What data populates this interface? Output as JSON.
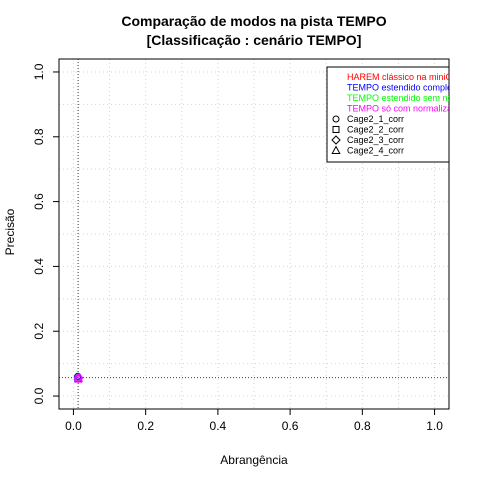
{
  "chart_data": {
    "type": "scatter",
    "title": [
      "Comparação de modos na pista TEMPO",
      "[Classificação : cenário TEMPO]"
    ],
    "xlabel": "Abrangência",
    "ylabel": "Precisão",
    "xlim": [
      0,
      1
    ],
    "ylim": [
      0,
      1
    ],
    "x_ticks": [
      "0.0",
      "0.2",
      "0.4",
      "0.6",
      "0.8",
      "1.0"
    ],
    "y_ticks": [
      "0.0",
      "0.2",
      "0.4",
      "0.6",
      "0.8",
      "1.0"
    ],
    "grid": true,
    "reference_lines": {
      "x": 0.013,
      "y": 0.057
    },
    "legend_position": "top-right",
    "legend": {
      "modes": [
        {
          "label": "HAREM clássico na miniC",
          "color": "#ff0000"
        },
        {
          "label": "TEMPO estendido comple",
          "color": "#0000ff"
        },
        {
          "label": "TEMPO estendido sem no",
          "color": "#00ff00"
        },
        {
          "label": "TEMPO só com normaliza",
          "color": "#ff00ff"
        }
      ],
      "runs": [
        {
          "label": "Cage2_1_corr",
          "symbol": "circle"
        },
        {
          "label": "Cage2_2_corr",
          "symbol": "square"
        },
        {
          "label": "Cage2_3_corr",
          "symbol": "diamond"
        },
        {
          "label": "Cage2_4_corr",
          "symbol": "triangle"
        }
      ]
    },
    "points": [
      {
        "x": 0.013,
        "y": 0.057,
        "color": "#ff0000",
        "symbol": "circle"
      },
      {
        "x": 0.012,
        "y": 0.053,
        "color": "#0000ff",
        "symbol": "square"
      },
      {
        "x": 0.013,
        "y": 0.058,
        "color": "#00ff00",
        "symbol": "diamond"
      },
      {
        "x": 0.014,
        "y": 0.055,
        "color": "#ff00ff",
        "symbol": "triangle"
      },
      {
        "x": 0.011,
        "y": 0.059,
        "color": "#ff00ff",
        "symbol": "circle"
      },
      {
        "x": 0.012,
        "y": 0.061,
        "color": "#0000ff",
        "symbol": "circle"
      },
      {
        "x": 0.014,
        "y": 0.052,
        "color": "#ff00ff",
        "symbol": "square"
      },
      {
        "x": 0.015,
        "y": 0.056,
        "color": "#ff00ff",
        "symbol": "diamond"
      }
    ]
  }
}
